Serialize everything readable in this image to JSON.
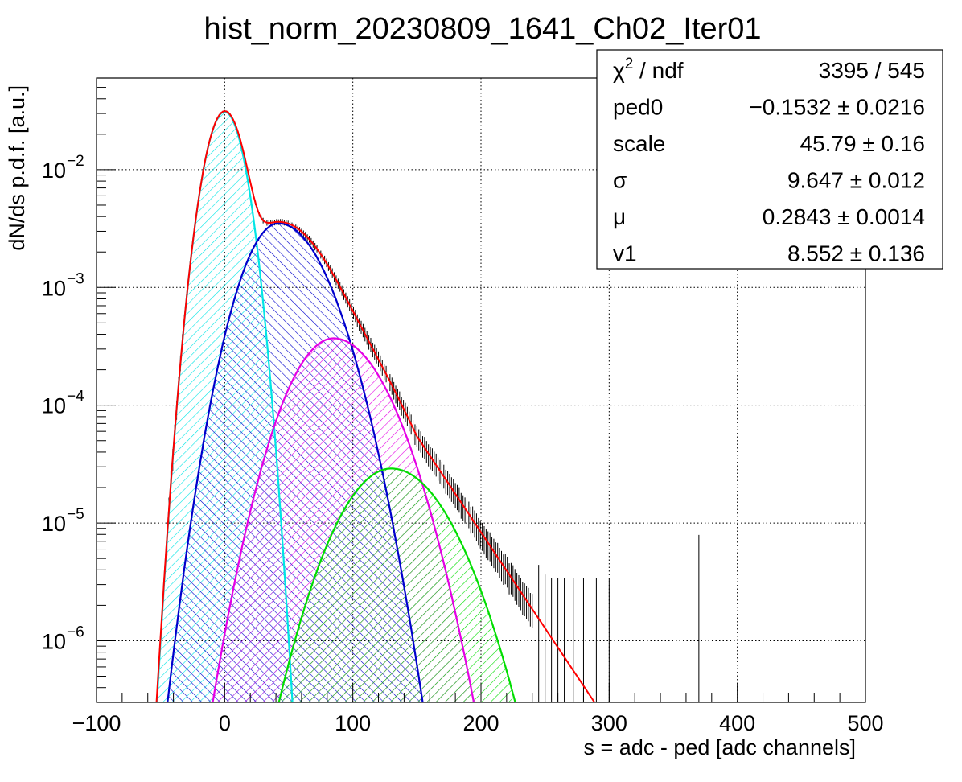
{
  "chart_data": {
    "type": "line",
    "title": "hist_norm_20230809_1641_Ch02_Iter01",
    "xlabel": "s = adc - ped [adc channels]",
    "ylabel": "dN/ds p.d.f. [a.u.]",
    "xlim": [
      -100,
      500
    ],
    "ylim": [
      3e-07,
      0.06
    ],
    "yscale": "log",
    "grid": true,
    "x_ticks": [
      {
        "value": -100,
        "label": "−100"
      },
      {
        "value": 0,
        "label": "0"
      },
      {
        "value": 100,
        "label": "100"
      },
      {
        "value": 200,
        "label": "200"
      },
      {
        "value": 300,
        "label": "300"
      },
      {
        "value": 400,
        "label": "400"
      },
      {
        "value": 500,
        "label": "500"
      }
    ],
    "y_ticks": [
      {
        "value": 1e-06,
        "base": "10",
        "exp": "−6"
      },
      {
        "value": 1e-05,
        "base": "10",
        "exp": "−5"
      },
      {
        "value": 0.0001,
        "base": "10",
        "exp": "−4"
      },
      {
        "value": 0.001,
        "base": "10",
        "exp": "−3"
      },
      {
        "value": 0.01,
        "base": "10",
        "exp": "−2"
      }
    ],
    "components": [
      {
        "color": "#00e5e5",
        "peak_x": 0,
        "peak_y": 0.031,
        "sigma_left": 11,
        "sigma_right": 11,
        "hatch": "right"
      },
      {
        "color": "#0000cc",
        "peak_x": 42,
        "peak_y": 0.0035,
        "sigma_left": 20,
        "sigma_right": 26,
        "hatch": "left"
      },
      {
        "color": "#e500e5",
        "peak_x": 85,
        "peak_y": 0.00037,
        "sigma_left": 25,
        "sigma_right": 29,
        "hatch": "right"
      },
      {
        "color": "#00dd00",
        "peak_x": 130,
        "peak_y": 2.9e-05,
        "sigma_left": 29,
        "sigma_right": 32,
        "hatch": "right"
      }
    ],
    "total_fit": {
      "color": "#ff0000",
      "tail_slope_per_100": 1.63,
      "tail_start": 150
    },
    "data_points": {
      "x_start": -45,
      "x_end": 240,
      "x_step": 1.5,
      "sparse_x": [
        245,
        250,
        255,
        260,
        265,
        272,
        280,
        290,
        300,
        370
      ]
    },
    "stats_box": {
      "rows": [
        {
          "label_main": "χ",
          "label_sup": "2",
          "label_rest": " / ndf",
          "value": "3395 / 545"
        },
        {
          "label_main": "ped0",
          "label_sup": "",
          "label_rest": "",
          "value": "−0.1532 ± 0.0216"
        },
        {
          "label_main": "scale",
          "label_sup": "",
          "label_rest": "",
          "value": "45.79 ± 0.16"
        },
        {
          "label_main": "σ",
          "label_sup": "",
          "label_rest": "",
          "value": "9.647 ± 0.012"
        },
        {
          "label_main": "μ",
          "label_sup": "",
          "label_rest": "",
          "value": "0.2843 ± 0.0014"
        },
        {
          "label_main": "v1",
          "label_sup": "",
          "label_rest": "",
          "value": "8.552 ± 0.136"
        }
      ]
    }
  }
}
